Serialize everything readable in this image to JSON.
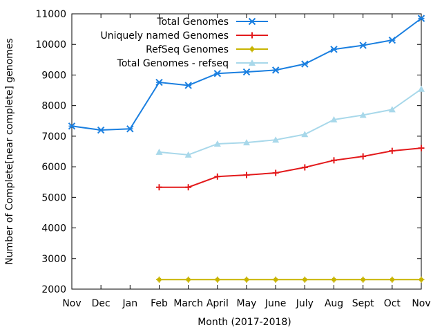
{
  "chart_data": {
    "type": "line",
    "title": "",
    "xlabel": "Month (2017-2018)",
    "ylabel": "Number of Complete[near complete] genomes",
    "categories": [
      "Nov",
      "Dec",
      "Jan",
      "Feb",
      "March",
      "April",
      "May",
      "June",
      "July",
      "Aug",
      "Sept",
      "Oct",
      "Nov"
    ],
    "ylim": [
      2000,
      11000
    ],
    "yticks": [
      "2000",
      "3000",
      "4000",
      "5000",
      "6000",
      "7000",
      "8000",
      "9000",
      "10000",
      "11000"
    ],
    "legend_position": "top-right",
    "series": [
      {
        "name": "Total Genomes",
        "color": "#1a7fe0",
        "marker": "asterisk",
        "values": [
          7330,
          7200,
          7240,
          8760,
          8660,
          9050,
          9100,
          9160,
          9360,
          9840,
          9970,
          10140,
          10850
        ]
      },
      {
        "name": "Uniquely named Genomes",
        "color": "#e31a1c",
        "marker": "plus",
        "values": [
          null,
          null,
          null,
          5330,
          5330,
          5680,
          5730,
          5800,
          5980,
          6210,
          6340,
          6520,
          6610
        ]
      },
      {
        "name": "RefSeq Genomes",
        "color": "#c8b400",
        "marker": "star",
        "values": [
          null,
          null,
          null,
          2310,
          2310,
          2310,
          2310,
          2310,
          2310,
          2310,
          2310,
          2310,
          2310
        ]
      },
      {
        "name": "Total Genomes - refseq",
        "color": "#a8d8ea",
        "marker": "triangle",
        "values": [
          null,
          null,
          null,
          6480,
          6390,
          6750,
          6790,
          6880,
          7060,
          7540,
          7690,
          7870,
          8540
        ]
      }
    ]
  }
}
